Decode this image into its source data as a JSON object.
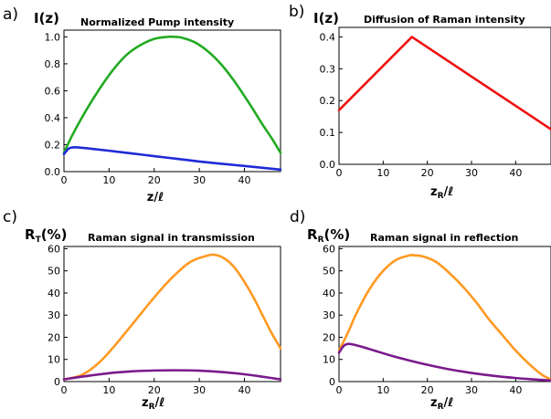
{
  "chart_data": [
    {
      "panel": "a)",
      "type": "line",
      "title": "Normalized Pump intensity",
      "ylabel": "I(z)",
      "xlabel": "z/ℓ",
      "xlim": [
        0,
        48
      ],
      "ylim": [
        0,
        1.05
      ],
      "xticks": [
        0,
        10,
        20,
        30,
        40
      ],
      "yticks": [
        0.0,
        0.2,
        0.4,
        0.6,
        0.8,
        1.0
      ],
      "yticklabels": [
        "0.0",
        "0.2",
        "0.4",
        "0.6",
        "0.8",
        "1.0"
      ],
      "series": [
        {
          "color": "#22aa22",
          "x": [
            0,
            2,
            5,
            8,
            11,
            14,
            17,
            20,
            23,
            24.5,
            26,
            29,
            32,
            35,
            38,
            41,
            44,
            46,
            48
          ],
          "y": [
            0.14,
            0.28,
            0.46,
            0.62,
            0.76,
            0.87,
            0.94,
            0.985,
            1.0,
            1.0,
            0.995,
            0.96,
            0.89,
            0.79,
            0.66,
            0.51,
            0.35,
            0.25,
            0.14
          ]
        },
        {
          "color": "#1f2bd6",
          "x": [
            0,
            1,
            2,
            3,
            6,
            10,
            15,
            20,
            25,
            30,
            35,
            40,
            45,
            48
          ],
          "y": [
            0.13,
            0.17,
            0.18,
            0.18,
            0.17,
            0.155,
            0.135,
            0.115,
            0.095,
            0.075,
            0.058,
            0.042,
            0.025,
            0.015
          ]
        }
      ]
    },
    {
      "panel": "b)",
      "type": "line",
      "title": "Diffusion of Raman intensity",
      "ylabel": "I(z)",
      "xlabel_main": "z",
      "xlabel_sub": "R",
      "xlabel_tail": "/ℓ",
      "xlim": [
        0,
        48
      ],
      "ylim": [
        0,
        0.43
      ],
      "xticks": [
        0,
        10,
        20,
        30,
        40
      ],
      "yticks": [
        0.0,
        0.1,
        0.2,
        0.3,
        0.4
      ],
      "yticklabels": [
        "0.0",
        "0.1",
        "0.2",
        "0.3",
        "0.4"
      ],
      "series": [
        {
          "color": "#ee1111",
          "x": [
            0,
            16.5,
            48
          ],
          "y": [
            0.17,
            0.4,
            0.11
          ]
        }
      ]
    },
    {
      "panel": "c)",
      "type": "line",
      "title": "Raman signal in transmission",
      "ylabel_main": "R",
      "ylabel_sub": "T",
      "ylabel_tail": "(%)",
      "xlabel_main": "z",
      "xlabel_sub": "R",
      "xlabel_tail": "/ℓ",
      "xlim": [
        0,
        48
      ],
      "ylim": [
        0,
        61
      ],
      "xticks": [
        0,
        10,
        20,
        30,
        40
      ],
      "yticks": [
        0,
        10,
        20,
        30,
        40,
        50,
        60
      ],
      "yticklabels": [
        "0",
        "10",
        "20",
        "30",
        "40",
        "50",
        "60"
      ],
      "series": [
        {
          "color": "#ff9922",
          "x": [
            0,
            4,
            8,
            12,
            16,
            20,
            24,
            28,
            32,
            34,
            36,
            38,
            40,
            42,
            44,
            46,
            48
          ],
          "y": [
            1,
            3,
            9,
            18,
            28,
            38,
            47,
            54,
            57,
            57,
            55,
            51,
            45,
            38,
            30,
            22,
            15
          ]
        },
        {
          "color": "#7a1a8c",
          "x": [
            0,
            5,
            10,
            15,
            20,
            25,
            30,
            35,
            40,
            44,
            48
          ],
          "y": [
            1,
            2.5,
            3.8,
            4.6,
            5.0,
            5.1,
            4.9,
            4.3,
            3.3,
            2.2,
            1
          ]
        }
      ]
    },
    {
      "panel": "d)",
      "type": "line",
      "title": "Raman signal in reflection",
      "ylabel_main": "R",
      "ylabel_sub": "R",
      "ylabel_tail": "(%)",
      "xlabel_main": "z",
      "xlabel_sub": "R",
      "xlabel_tail": "/ℓ",
      "xlim": [
        0,
        48
      ],
      "ylim": [
        0,
        61
      ],
      "xticks": [
        0,
        10,
        20,
        30,
        40
      ],
      "yticks": [
        0,
        10,
        20,
        30,
        40,
        50,
        60
      ],
      "yticklabels": [
        "0",
        "10",
        "20",
        "30",
        "40",
        "50",
        "60"
      ],
      "series": [
        {
          "color": "#ff9922",
          "x": [
            0,
            2,
            4,
            7,
            10,
            13,
            16,
            17,
            19,
            22,
            25,
            28,
            31,
            34,
            37,
            40,
            43,
            46,
            48
          ],
          "y": [
            14,
            22,
            31,
            42,
            50,
            55,
            57,
            57,
            56.5,
            54,
            49,
            43,
            36,
            28,
            21,
            14,
            8,
            3,
            1
          ]
        },
        {
          "color": "#7a1a8c",
          "x": [
            0,
            1,
            2,
            3,
            5,
            8,
            12,
            16,
            20,
            25,
            30,
            35,
            40,
            44,
            48
          ],
          "y": [
            13,
            16,
            17,
            16.8,
            15.8,
            14,
            11.6,
            9.5,
            7.6,
            5.5,
            3.9,
            2.6,
            1.6,
            1,
            0.5
          ]
        }
      ]
    }
  ]
}
